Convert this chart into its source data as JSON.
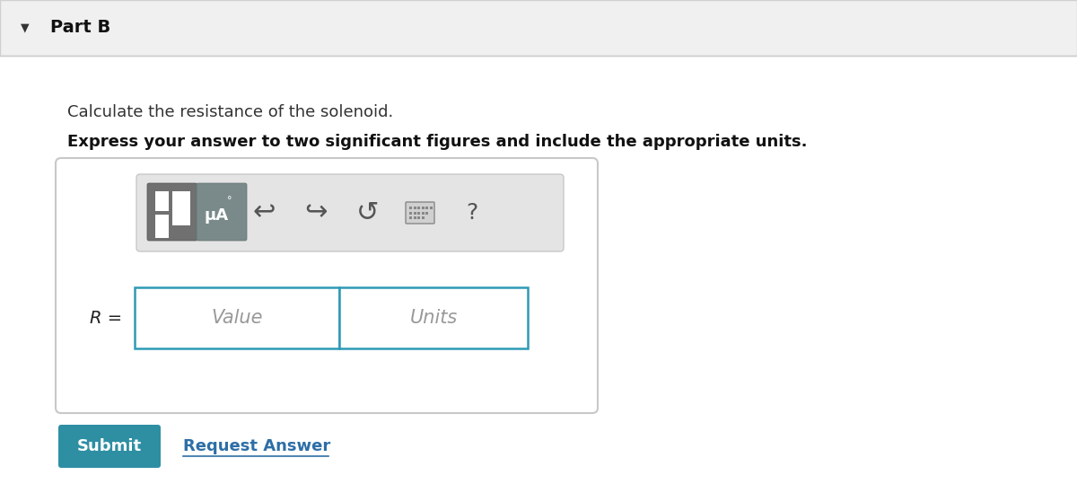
{
  "header_bg": "#f0f0f0",
  "header_text": "Part B",
  "body_bg": "#ffffff",
  "question_line1": "Calculate the resistance of the solenoid.",
  "question_line2": "Express your answer to two significant figures and include the appropriate units.",
  "input_box_border": "#2e9ab5",
  "value_placeholder": "Value",
  "units_placeholder": "Units",
  "submit_bg": "#2e8fa3",
  "submit_text": "Submit",
  "submit_text_color": "#ffffff",
  "request_answer_text": "Request Answer",
  "request_answer_color": "#2e6ea6",
  "question1_fontsize": 13,
  "question2_fontsize": 13,
  "header_fontsize": 14,
  "placeholder_fontsize": 15,
  "rlabel_fontsize": 14
}
